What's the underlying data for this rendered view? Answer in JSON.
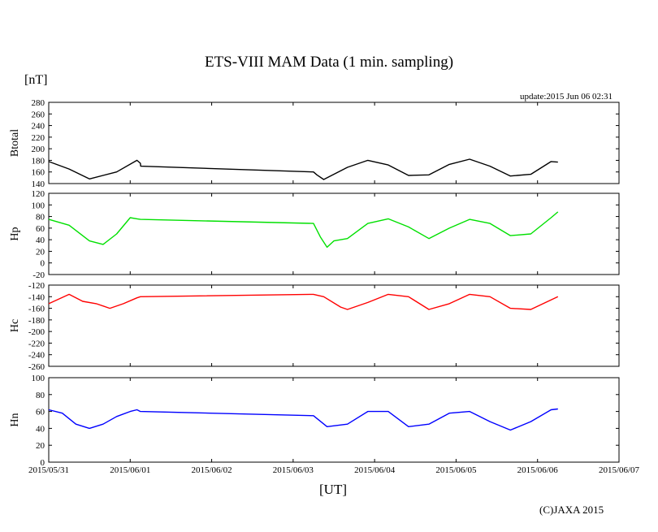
{
  "title": "ETS-VIII MAM Data (1 min. sampling)",
  "unit_label": "[nT]",
  "update_text": "update:2015 Jun 06 02:31",
  "x_unit_label": "[UT]",
  "copyright": "(C)JAXA 2015",
  "colors": {
    "Btotal": "#000000",
    "Hp": "#00e000",
    "Hc": "#ff0000",
    "Hn": "#0000ff"
  },
  "chart_data": [
    {
      "type": "line",
      "ylabel": "Btotal",
      "ylim": [
        140,
        280
      ],
      "yticks": [
        140,
        160,
        180,
        200,
        220,
        240,
        260,
        280
      ],
      "xlim": [
        "2015-05-31 00:00",
        "2015-06-07 00:00"
      ],
      "x_hours": [
        0,
        6,
        12,
        20,
        26,
        27,
        27.1,
        78,
        79,
        81,
        82,
        88,
        94,
        100,
        106,
        112,
        118,
        124,
        130,
        136,
        142,
        148,
        150
      ],
      "values": [
        178,
        165,
        148,
        160,
        180,
        175,
        170,
        160,
        155,
        147,
        150,
        168,
        180,
        172,
        154,
        155,
        173,
        182,
        170,
        153,
        156,
        178,
        177
      ],
      "series": [
        {
          "name": "Btotal"
        }
      ]
    },
    {
      "type": "line",
      "ylabel": "Hp",
      "ylim": [
        -20,
        120
      ],
      "yticks": [
        -20,
        0,
        20,
        40,
        60,
        80,
        100,
        120
      ],
      "xlim": [
        "2015-05-31 00:00",
        "2015-06-07 00:00"
      ],
      "x_hours": [
        0,
        6,
        12,
        16,
        20,
        24,
        26,
        27,
        78,
        80,
        82,
        84,
        88,
        94,
        100,
        106,
        112,
        118,
        124,
        130,
        136,
        142,
        148,
        150
      ],
      "values": [
        75,
        65,
        38,
        32,
        50,
        78,
        76,
        75,
        68,
        45,
        27,
        38,
        42,
        68,
        76,
        62,
        42,
        60,
        75,
        68,
        47,
        50,
        78,
        88
      ],
      "series": [
        {
          "name": "Hp"
        }
      ]
    },
    {
      "type": "line",
      "ylabel": "Hc",
      "ylim": [
        -260,
        -120
      ],
      "yticks": [
        -260,
        -240,
        -220,
        -200,
        -180,
        -160,
        -140,
        -120
      ],
      "xlim": [
        "2015-05-31 00:00",
        "2015-06-07 00:00"
      ],
      "x_hours": [
        0,
        6,
        10,
        14,
        18,
        22,
        26,
        27,
        78,
        81,
        86,
        88,
        94,
        100,
        106,
        112,
        118,
        124,
        130,
        136,
        142,
        150
      ],
      "values": [
        -152,
        -136,
        -148,
        -152,
        -160,
        -152,
        -142,
        -140,
        -136,
        -140,
        -158,
        -162,
        -150,
        -136,
        -140,
        -162,
        -152,
        -136,
        -140,
        -160,
        -162,
        -140
      ],
      "series": [
        {
          "name": "Hc"
        }
      ]
    },
    {
      "type": "line",
      "ylabel": "Hn",
      "ylim": [
        0,
        100
      ],
      "yticks": [
        0,
        20,
        40,
        60,
        80,
        100
      ],
      "xlim": [
        "2015-05-31 00:00",
        "2015-06-07 00:00"
      ],
      "x_hours": [
        0,
        4,
        8,
        12,
        16,
        20,
        24,
        26,
        27,
        78,
        82,
        88,
        94,
        100,
        106,
        112,
        118,
        124,
        130,
        136,
        142,
        148,
        150
      ],
      "values": [
        62,
        58,
        45,
        40,
        45,
        54,
        60,
        62,
        60,
        55,
        42,
        45,
        60,
        60,
        42,
        45,
        58,
        60,
        48,
        38,
        48,
        62,
        63
      ],
      "series": [
        {
          "name": "Hn"
        }
      ]
    }
  ],
  "x_ticks": [
    "2015/05/31",
    "2015/06/01",
    "2015/06/02",
    "2015/06/03",
    "2015/06/04",
    "2015/06/05",
    "2015/06/06",
    "2015/06/07"
  ]
}
